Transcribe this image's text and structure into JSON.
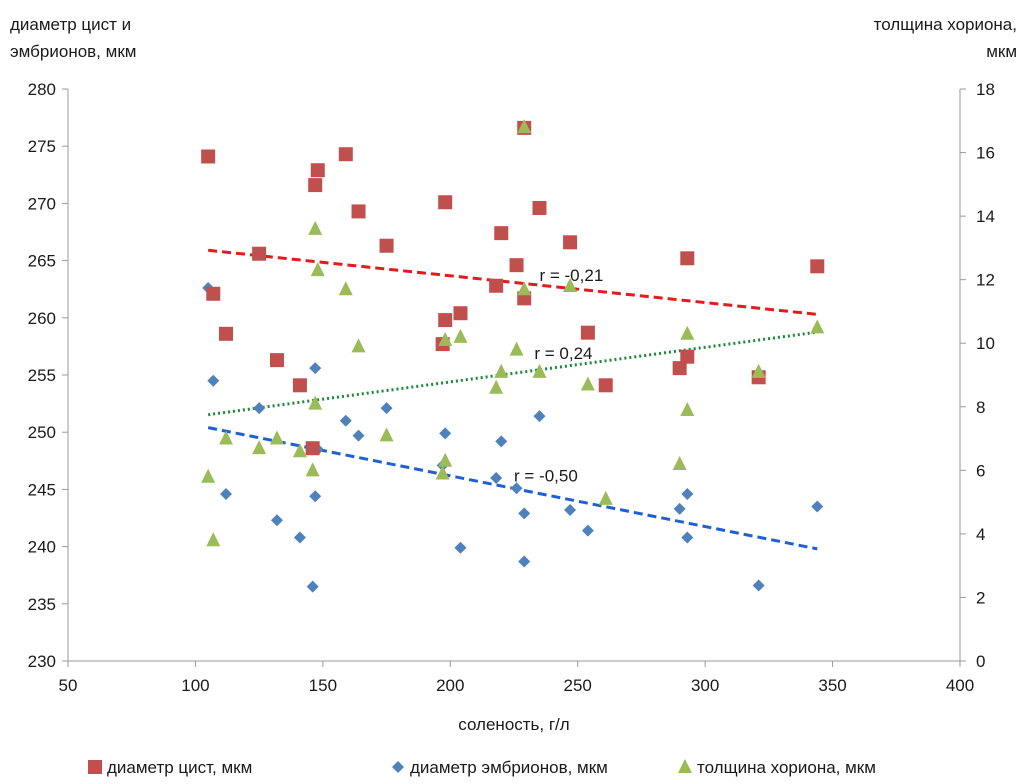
{
  "chart_data": {
    "type": "scatter",
    "xlabel": "соленость, г/л",
    "ylabel_left": [
      "диаметр цист и",
      "эмбрионов, мкм"
    ],
    "ylabel_right": [
      "толщина хориона,",
      "мкм"
    ],
    "xlim": [
      50,
      400
    ],
    "ylim_left": [
      230,
      280
    ],
    "ylim_right": [
      0,
      18
    ],
    "x_ticks": [
      50,
      100,
      150,
      200,
      250,
      300,
      350,
      400
    ],
    "y_left_ticks": [
      230,
      235,
      240,
      245,
      250,
      255,
      260,
      265,
      270,
      275,
      280
    ],
    "y_right_ticks": [
      0,
      2,
      4,
      6,
      8,
      10,
      12,
      14,
      16,
      18
    ],
    "grid": false,
    "legend_position": "bottom",
    "series": [
      {
        "name": "диаметр цист, мкм",
        "marker": "square",
        "color": "#C0504D",
        "axis": "left",
        "points": [
          [
            105,
            274.1
          ],
          [
            107,
            262.1
          ],
          [
            112,
            258.6
          ],
          [
            125,
            265.6
          ],
          [
            132,
            256.3
          ],
          [
            141,
            254.1
          ],
          [
            146,
            248.6
          ],
          [
            147,
            271.6
          ],
          [
            148,
            272.9
          ],
          [
            159,
            274.3
          ],
          [
            164,
            269.3
          ],
          [
            175,
            266.3
          ],
          [
            197,
            257.7
          ],
          [
            198,
            259.8
          ],
          [
            198,
            270.1
          ],
          [
            204,
            260.4
          ],
          [
            218,
            262.8
          ],
          [
            220,
            267.4
          ],
          [
            226,
            264.6
          ],
          [
            229,
            261.7
          ],
          [
            229,
            276.6
          ],
          [
            235,
            269.6
          ],
          [
            247,
            266.6
          ],
          [
            254,
            258.7
          ],
          [
            261,
            254.1
          ],
          [
            290,
            255.6
          ],
          [
            293,
            256.6
          ],
          [
            293,
            265.2
          ],
          [
            321,
            254.8
          ],
          [
            344,
            264.5
          ]
        ]
      },
      {
        "name": "диаметр эмбрионов, мкм",
        "marker": "diamond",
        "color": "#4F81BD",
        "axis": "left",
        "points": [
          [
            105,
            262.6
          ],
          [
            107,
            254.5
          ],
          [
            112,
            244.6
          ],
          [
            125,
            252.1
          ],
          [
            132,
            242.3
          ],
          [
            141,
            240.8
          ],
          [
            146,
            236.5
          ],
          [
            147,
            244.4
          ],
          [
            147,
            255.6
          ],
          [
            148,
            248.5
          ],
          [
            159,
            251
          ],
          [
            164,
            249.7
          ],
          [
            175,
            252.1
          ],
          [
            197,
            247.1
          ],
          [
            198,
            249.9
          ],
          [
            204,
            239.9
          ],
          [
            218,
            246
          ],
          [
            220,
            249.2
          ],
          [
            226,
            245.1
          ],
          [
            229,
            242.9
          ],
          [
            229,
            238.7
          ],
          [
            235,
            251.4
          ],
          [
            247,
            243.2
          ],
          [
            254,
            241.4
          ],
          [
            290,
            243.3
          ],
          [
            293,
            244.6
          ],
          [
            293,
            240.8
          ],
          [
            321,
            236.6
          ],
          [
            344,
            243.5
          ]
        ]
      },
      {
        "name": "толщина хориона, мкм",
        "marker": "triangle",
        "color": "#9BBB59",
        "axis": "right",
        "points": [
          [
            105,
            5.8
          ],
          [
            107,
            3.8
          ],
          [
            112,
            7
          ],
          [
            125,
            6.7
          ],
          [
            132,
            7
          ],
          [
            141,
            6.6
          ],
          [
            146,
            6
          ],
          [
            147,
            8.1
          ],
          [
            147,
            13.6
          ],
          [
            148,
            12.3
          ],
          [
            159,
            11.7
          ],
          [
            164,
            9.9
          ],
          [
            175,
            7.1
          ],
          [
            197,
            5.9
          ],
          [
            198,
            6.3
          ],
          [
            198,
            10.1
          ],
          [
            204,
            10.2
          ],
          [
            218,
            8.6
          ],
          [
            220,
            9.1
          ],
          [
            226,
            9.8
          ],
          [
            229,
            11.7
          ],
          [
            229,
            16.8
          ],
          [
            235,
            9.1
          ],
          [
            247,
            11.8
          ],
          [
            254,
            8.7
          ],
          [
            261,
            5.1
          ],
          [
            290,
            6.2
          ],
          [
            293,
            10.3
          ],
          [
            293,
            7.9
          ],
          [
            321,
            9.1
          ],
          [
            344,
            10.5
          ]
        ]
      }
    ],
    "trendlines": [
      {
        "series": "диаметр цист, мкм",
        "color": "#E41A1C",
        "dash": "dashed",
        "axis": "left",
        "from": [
          105,
          265.9
        ],
        "to": [
          344,
          260.3
        ],
        "label": "r = -0,21",
        "label_at": [
          235,
          263.2
        ]
      },
      {
        "series": "толщина хориона, мкм",
        "color": "#1A8A3A",
        "dash": "dotted",
        "axis": "right",
        "from": [
          105,
          7.75
        ],
        "to": [
          344,
          10.35
        ],
        "label": "r = 0,24",
        "label_at": [
          233,
          9.5
        ]
      },
      {
        "series": "диаметр эмбрионов, мкм",
        "color": "#1F5FD6",
        "dash": "dashed",
        "axis": "left",
        "from": [
          105,
          250.4
        ],
        "to": [
          344,
          239.8
        ],
        "label": "r = -0,50",
        "label_at": [
          225,
          245.7
        ]
      }
    ]
  }
}
